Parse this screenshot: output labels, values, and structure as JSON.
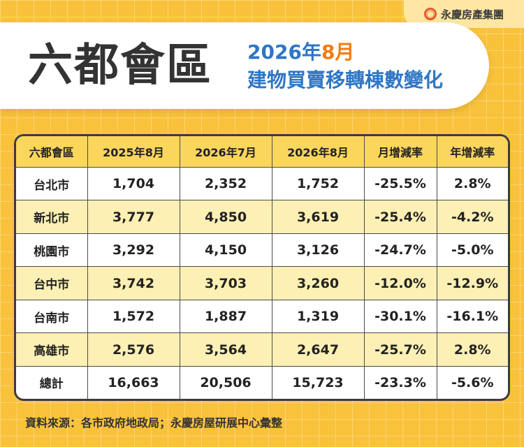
{
  "brand": {
    "name": "永慶房產集團",
    "icon": "yongqing-logo-icon"
  },
  "header": {
    "title": "六都會區",
    "subtitle_year": "2026年",
    "subtitle_month": "8月",
    "subtitle_line2": "建物買賣移轉棟數變化"
  },
  "colors": {
    "background": "#f9c23b",
    "header_row": "#fbd65c",
    "alt_row": "#fdf0b4",
    "blue": "#2f76c4",
    "orange": "#f07c12"
  },
  "table": {
    "headers": [
      "六都會區",
      "2025年8月",
      "2026年7月",
      "2026年8月",
      "月增減率",
      "年增減率"
    ],
    "rows": [
      [
        "台北市",
        "1,704",
        "2,352",
        "1,752",
        "-25.5%",
        "2.8%"
      ],
      [
        "新北市",
        "3,777",
        "4,850",
        "3,619",
        "-25.4%",
        "-4.2%"
      ],
      [
        "桃園市",
        "3,292",
        "4,150",
        "3,126",
        "-24.7%",
        "-5.0%"
      ],
      [
        "台中市",
        "3,742",
        "3,703",
        "3,260",
        "-12.0%",
        "-12.9%"
      ],
      [
        "台南市",
        "1,572",
        "1,887",
        "1,319",
        "-30.1%",
        "-16.1%"
      ],
      [
        "高雄市",
        "2,576",
        "3,564",
        "2,647",
        "-25.7%",
        "2.8%"
      ],
      [
        "總計",
        "16,663",
        "20,506",
        "15,723",
        "-23.3%",
        "-5.6%"
      ]
    ]
  },
  "footer": {
    "source": "資料來源：各市政府地政局；永慶房屋研展中心彙整"
  }
}
